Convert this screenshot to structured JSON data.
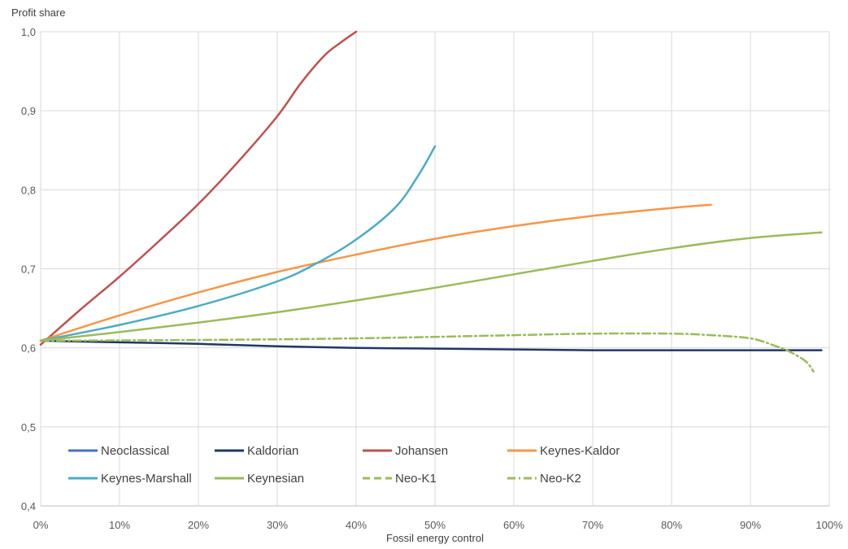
{
  "chart_data": {
    "type": "line",
    "ylabel": "Profit share",
    "xlabel": "Fossil energy control",
    "xlim": [
      0,
      100
    ],
    "ylim": [
      0.4,
      1.0
    ],
    "x_ticks": [
      {
        "value": 0,
        "label": "0%"
      },
      {
        "value": 10,
        "label": "10%"
      },
      {
        "value": 20,
        "label": "20%"
      },
      {
        "value": 30,
        "label": "30%"
      },
      {
        "value": 40,
        "label": "40%"
      },
      {
        "value": 50,
        "label": "50%"
      },
      {
        "value": 60,
        "label": "60%"
      },
      {
        "value": 70,
        "label": "70%"
      },
      {
        "value": 80,
        "label": "80%"
      },
      {
        "value": 90,
        "label": "90%"
      },
      {
        "value": 100,
        "label": "100%"
      }
    ],
    "y_ticks": [
      {
        "value": 0.4,
        "label": "0,4"
      },
      {
        "value": 0.5,
        "label": "0,5"
      },
      {
        "value": 0.6,
        "label": "0,6"
      },
      {
        "value": 0.7,
        "label": "0,7"
      },
      {
        "value": 0.8,
        "label": "0,8"
      },
      {
        "value": 0.9,
        "label": "0,9"
      },
      {
        "value": 1.0,
        "label": "1,0"
      }
    ],
    "grid": "vertical and horizontal",
    "legend_position": "bottom-inside",
    "series": [
      {
        "name": "Neoclassical",
        "color": "#4472C4",
        "dash": "solid",
        "x": [],
        "y": []
      },
      {
        "name": "Kaldorian",
        "color": "#1F3864",
        "dash": "solid",
        "x": [
          0,
          10,
          20,
          30,
          40,
          50,
          60,
          70,
          80,
          90,
          99
        ],
        "y": [
          0.609,
          0.607,
          0.605,
          0.602,
          0.6,
          0.599,
          0.598,
          0.597,
          0.597,
          0.597,
          0.597
        ]
      },
      {
        "name": "Johansen",
        "color": "#C0504D",
        "dash": "solid",
        "x": [
          0,
          5,
          10,
          15,
          20,
          25,
          30,
          33,
          36,
          38,
          40
        ],
        "y": [
          0.604,
          0.648,
          0.69,
          0.735,
          0.782,
          0.835,
          0.893,
          0.935,
          0.97,
          0.986,
          1.0
        ]
      },
      {
        "name": "Keynes-Kaldor",
        "color": "#F79646",
        "dash": "solid",
        "x": [
          0,
          10,
          20,
          30,
          40,
          50,
          60,
          70,
          80,
          85
        ],
        "y": [
          0.609,
          0.641,
          0.67,
          0.696,
          0.718,
          0.738,
          0.754,
          0.767,
          0.777,
          0.781
        ]
      },
      {
        "name": "Keynes-Marshall",
        "color": "#4BACC6",
        "dash": "solid",
        "x": [
          0,
          10,
          20,
          30,
          35,
          40,
          45,
          48,
          50
        ],
        "y": [
          0.609,
          0.629,
          0.653,
          0.684,
          0.707,
          0.737,
          0.778,
          0.82,
          0.855
        ]
      },
      {
        "name": "Keynesian",
        "color": "#9BBB59",
        "dash": "solid",
        "x": [
          0,
          10,
          20,
          30,
          40,
          50,
          60,
          70,
          80,
          90,
          99
        ],
        "y": [
          0.609,
          0.62,
          0.632,
          0.645,
          0.66,
          0.676,
          0.693,
          0.71,
          0.726,
          0.739,
          0.746
        ]
      },
      {
        "name": "Neo-K1",
        "color": "#9BBB59",
        "dash": "dashed",
        "x": [],
        "y": []
      },
      {
        "name": "Neo-K2",
        "color": "#9BBB59",
        "dash": "dashdot",
        "x": [
          0,
          20,
          40,
          60,
          70,
          80,
          85,
          90,
          93,
          95,
          97,
          98
        ],
        "y": [
          0.609,
          0.61,
          0.612,
          0.616,
          0.618,
          0.618,
          0.616,
          0.612,
          0.603,
          0.595,
          0.583,
          0.57
        ]
      }
    ]
  }
}
